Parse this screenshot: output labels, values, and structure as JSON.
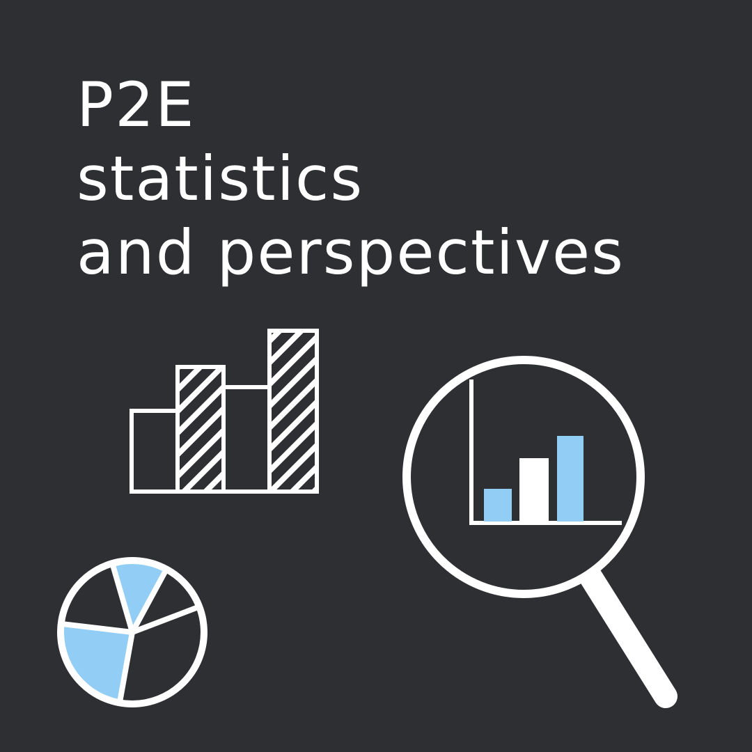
{
  "title": {
    "lines": [
      "P2E",
      "statistics",
      "and perspectives"
    ]
  },
  "colors": {
    "background": "#2e2f33",
    "foreground": "#ffffff",
    "accent": "#91cdf5"
  },
  "icons": {
    "bar_chart": "hatched-bar-chart-icon",
    "magnifier": "magnifying-glass-chart-icon",
    "pie_chart": "pie-chart-icon"
  }
}
